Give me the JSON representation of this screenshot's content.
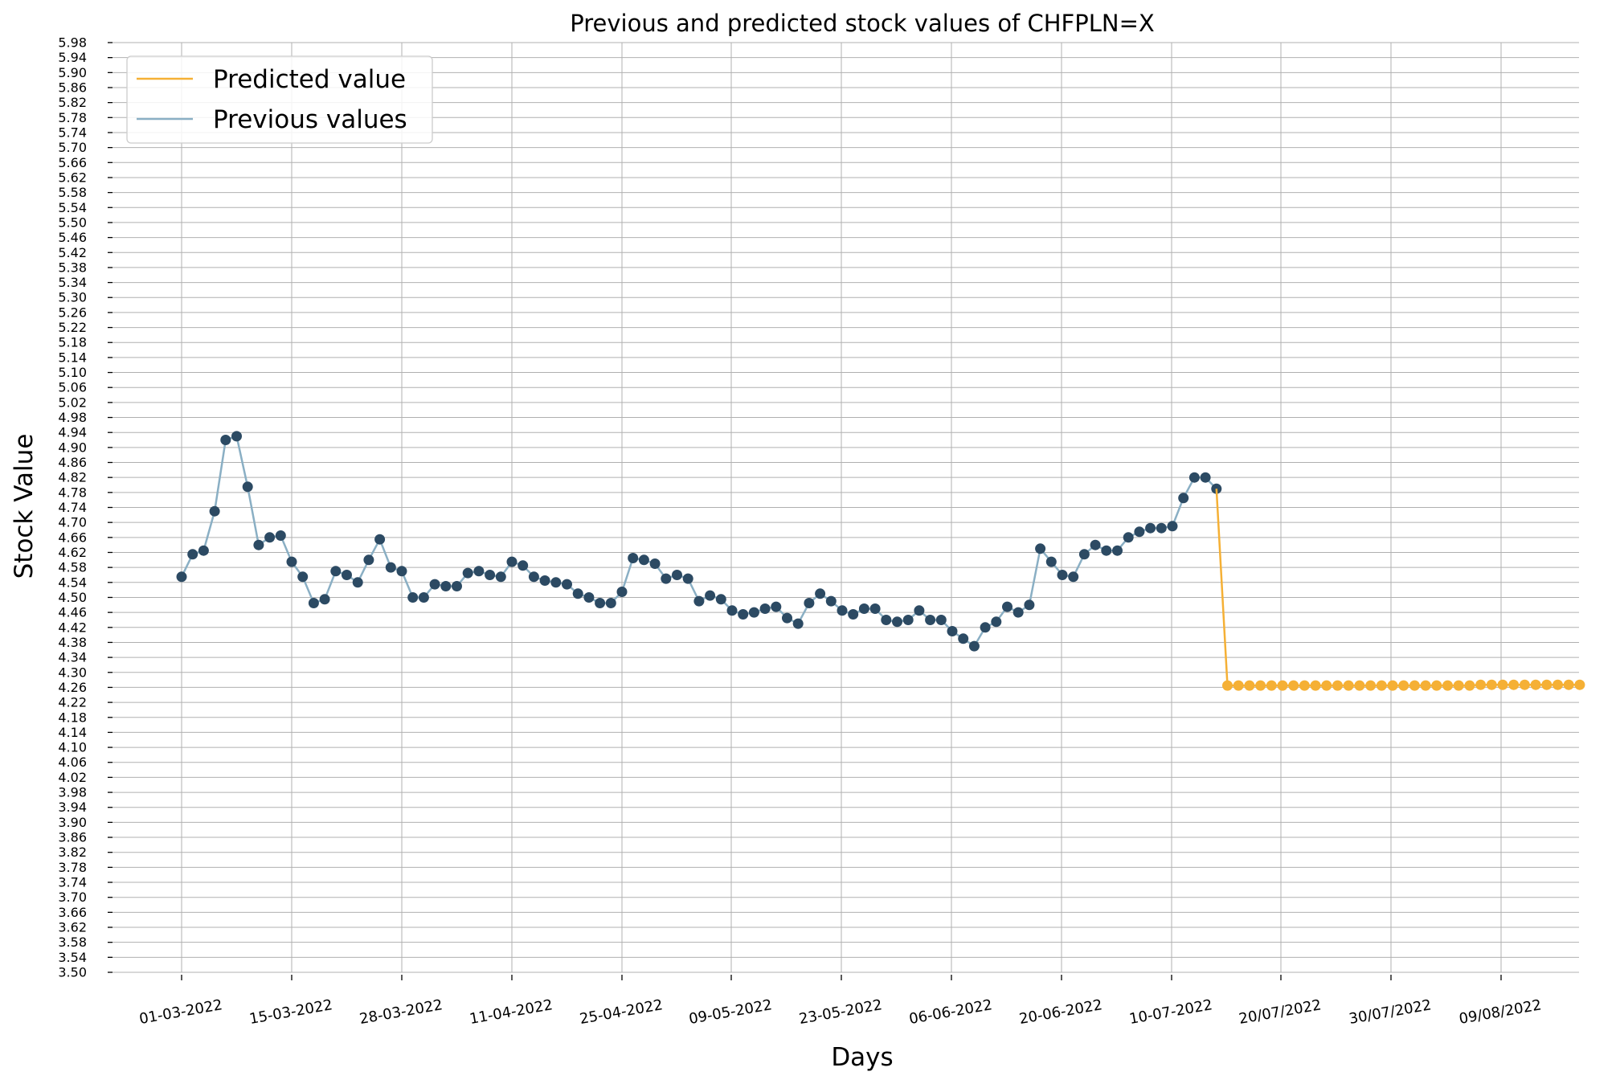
{
  "chart_data": {
    "type": "line",
    "title": "Previous and predicted stock values of CHFPLN=X",
    "xlabel": "Days",
    "ylabel": "Stock Value",
    "ylim": [
      3.5,
      5.98
    ],
    "yticks": [
      "3.50",
      "3.54",
      "3.58",
      "3.62",
      "3.66",
      "3.70",
      "3.74",
      "3.78",
      "3.82",
      "3.86",
      "3.90",
      "3.94",
      "3.98",
      "4.02",
      "4.06",
      "4.10",
      "4.14",
      "4.18",
      "4.22",
      "4.26",
      "4.30",
      "4.34",
      "4.38",
      "4.42",
      "4.46",
      "4.50",
      "4.54",
      "4.58",
      "4.62",
      "4.66",
      "4.70",
      "4.74",
      "4.78",
      "4.82",
      "4.86",
      "4.90",
      "4.94",
      "4.98",
      "5.02",
      "5.06",
      "5.10",
      "5.14",
      "5.18",
      "5.22",
      "5.26",
      "5.30",
      "5.34",
      "5.38",
      "5.42",
      "5.46",
      "5.50",
      "5.54",
      "5.58",
      "5.62",
      "5.66",
      "5.70",
      "5.74",
      "5.78",
      "5.82",
      "5.86",
      "5.90",
      "5.94",
      "5.98"
    ],
    "xtick_labels": [
      "01-03-2022",
      "15-03-2022",
      "28-03-2022",
      "11-04-2022",
      "25-04-2022",
      "09-05-2022",
      "23-05-2022",
      "06-06-2022",
      "20-06-2022",
      "10-07-2022",
      "20/07/2022",
      "30/07/2022",
      "09/08/2022"
    ],
    "grid": true,
    "legend_position": "top-left",
    "legend": [
      "Predicted value",
      "Previous values"
    ],
    "series": [
      {
        "name": "Previous values",
        "line_color": "#8aafc4",
        "marker_color": "#2c4a63",
        "values": [
          4.555,
          4.615,
          4.625,
          4.73,
          4.92,
          4.93,
          4.795,
          4.64,
          4.66,
          4.665,
          4.595,
          4.555,
          4.485,
          4.495,
          4.57,
          4.56,
          4.54,
          4.6,
          4.655,
          4.58,
          4.57,
          4.5,
          4.5,
          4.535,
          4.53,
          4.53,
          4.565,
          4.57,
          4.56,
          4.555,
          4.595,
          4.585,
          4.555,
          4.545,
          4.54,
          4.535,
          4.51,
          4.5,
          4.485,
          4.485,
          4.515,
          4.605,
          4.6,
          4.59,
          4.55,
          4.56,
          4.55,
          4.49,
          4.505,
          4.495,
          4.465,
          4.455,
          4.46,
          4.47,
          4.475,
          4.445,
          4.43,
          4.485,
          4.51,
          4.49,
          4.465,
          4.455,
          4.47,
          4.47,
          4.44,
          4.435,
          4.44,
          4.465,
          4.44,
          4.44,
          4.41,
          4.39,
          4.37,
          4.42,
          4.435,
          4.475,
          4.46,
          4.48,
          4.63,
          4.595,
          4.56,
          4.555,
          4.615,
          4.64,
          4.625,
          4.625,
          4.66,
          4.675,
          4.685,
          4.685,
          4.69,
          4.765,
          4.82,
          4.82,
          4.79
        ]
      },
      {
        "name": "Predicted value",
        "line_color": "#f5b035",
        "marker_color": "#f5b035",
        "values": [
          4.79,
          4.265,
          4.265,
          4.265,
          4.265,
          4.265,
          4.265,
          4.265,
          4.265,
          4.265,
          4.265,
          4.265,
          4.265,
          4.265,
          4.265,
          4.265,
          4.265,
          4.265,
          4.265,
          4.265,
          4.265,
          4.265,
          4.265,
          4.265,
          4.267,
          4.267,
          4.267,
          4.267,
          4.267,
          4.267,
          4.267,
          4.267,
          4.267,
          4.267
        ]
      }
    ]
  }
}
